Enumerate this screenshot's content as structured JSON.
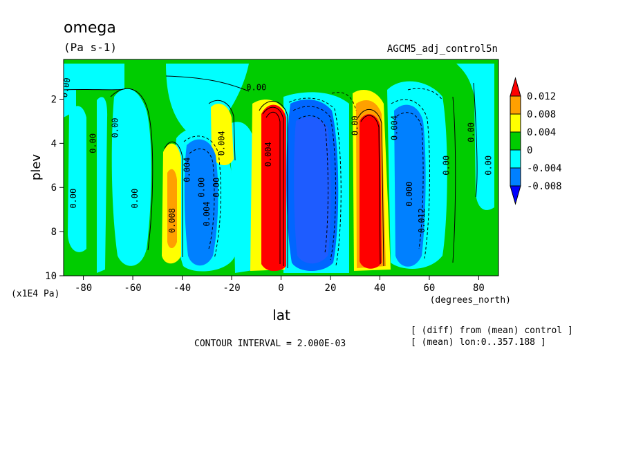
{
  "chart_data": {
    "type": "contour",
    "title": "omega",
    "units": "(Pa s-1)",
    "run_label": "AGCM5_adj_control5n",
    "xlabel": "lat",
    "xunits": "(degrees_north)",
    "ylabel": "plev",
    "yunits": "(x1E4 Pa)",
    "xlim": [
      -88,
      88
    ],
    "ylim": [
      10,
      0.2
    ],
    "x_ticks": [
      "-80",
      "-60",
      "-40",
      "-20",
      "0",
      "20",
      "40",
      "60",
      "80"
    ],
    "y_ticks": [
      "2",
      "4",
      "6",
      "8",
      "10"
    ],
    "contour_interval_label": "CONTOUR INTERVAL = 2.000E-03",
    "notes": [
      "[ (diff) from (mean) control ]",
      "[ (mean) lon:0..357.188 ]"
    ],
    "colorbar": {
      "levels": [
        "0.012",
        "0.008",
        "0.004",
        "0",
        "-0.004",
        "-0.008"
      ],
      "colors": [
        "#ff0000",
        "#ffa000",
        "#ffff00",
        "#00cc00",
        "#00ffff",
        "#0080ff",
        "#0000ff"
      ]
    },
    "contour_labels": [
      {
        "text": "0.00",
        "lat": -86,
        "p": 1.5,
        "rot": -80
      },
      {
        "text": "0.00",
        "lat": -75,
        "p": 4.0,
        "rot": -90
      },
      {
        "text": "0.00",
        "lat": -66,
        "p": 3.3,
        "rot": -90
      },
      {
        "text": "0.00",
        "lat": -83,
        "p": 6.5,
        "rot": -90
      },
      {
        "text": "0.00",
        "lat": -58,
        "p": 6.5,
        "rot": -90
      },
      {
        "text": "0.008",
        "lat": -43,
        "p": 7.5,
        "rot": -90
      },
      {
        "text": "0.004",
        "lat": -37,
        "p": 5.2,
        "rot": -90
      },
      {
        "text": "0.00",
        "lat": -31,
        "p": 6.0,
        "rot": -90
      },
      {
        "text": "0.004",
        "lat": -29,
        "p": 7.2,
        "rot": -90
      },
      {
        "text": "0.004",
        "lat": -23,
        "p": 4.0,
        "rot": -90
      },
      {
        "text": "0.00",
        "lat": -25,
        "p": 6.0,
        "rot": -90
      },
      {
        "text": "0.00",
        "lat": -10,
        "p": 1.6,
        "rot": 0
      },
      {
        "text": "0.004",
        "lat": -4,
        "p": 4.5,
        "rot": -90
      },
      {
        "text": "0.00",
        "lat": 31,
        "p": 3.2,
        "rot": -90
      },
      {
        "text": "0.004",
        "lat": 47,
        "p": 3.3,
        "rot": -90
      },
      {
        "text": "0.000",
        "lat": 53,
        "p": 6.3,
        "rot": -90
      },
      {
        "text": "0.012",
        "lat": 58,
        "p": 7.5,
        "rot": -90
      },
      {
        "text": "0.00",
        "lat": 68,
        "p": 5.0,
        "rot": -90
      },
      {
        "text": "0.00",
        "lat": 78,
        "p": 3.5,
        "rot": -90
      },
      {
        "text": "0.00",
        "lat": 85,
        "p": 5.0,
        "rot": -90
      }
    ]
  }
}
